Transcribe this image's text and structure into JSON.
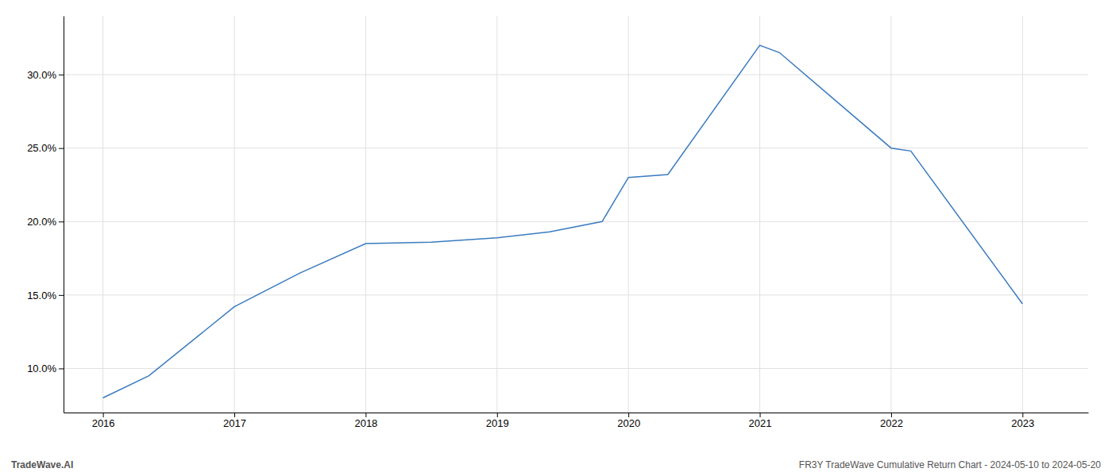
{
  "chart_data": {
    "type": "line",
    "x": [
      2016.0,
      2016.35,
      2017.0,
      2017.5,
      2018.0,
      2018.5,
      2019.0,
      2019.4,
      2019.8,
      2020.0,
      2020.3,
      2021.0,
      2021.15,
      2022.0,
      2022.15,
      2023.0
    ],
    "values": [
      8.0,
      9.5,
      14.2,
      16.5,
      18.5,
      18.6,
      18.9,
      19.3,
      20.0,
      23.0,
      23.2,
      32.0,
      31.5,
      25.0,
      24.8,
      14.4
    ],
    "color": "#3a7bbf",
    "xlim": [
      2015.7,
      2023.5
    ],
    "ylim": [
      7.0,
      34.0
    ],
    "xticks": [
      2016,
      2017,
      2018,
      2019,
      2020,
      2021,
      2022,
      2023
    ],
    "yticks": [
      {
        "value": 10.0,
        "label": "10.0%"
      },
      {
        "value": 15.0,
        "label": "15.0%"
      },
      {
        "value": 20.0,
        "label": "20.0%"
      },
      {
        "value": 25.0,
        "label": "25.0%"
      },
      {
        "value": 30.0,
        "label": "30.0%"
      }
    ],
    "grid": true,
    "annotations": [
      "TradeWave.AI",
      "FR3Y TradeWave Cumulative Return Chart - 2024-05-10 to 2024-05-20"
    ]
  }
}
